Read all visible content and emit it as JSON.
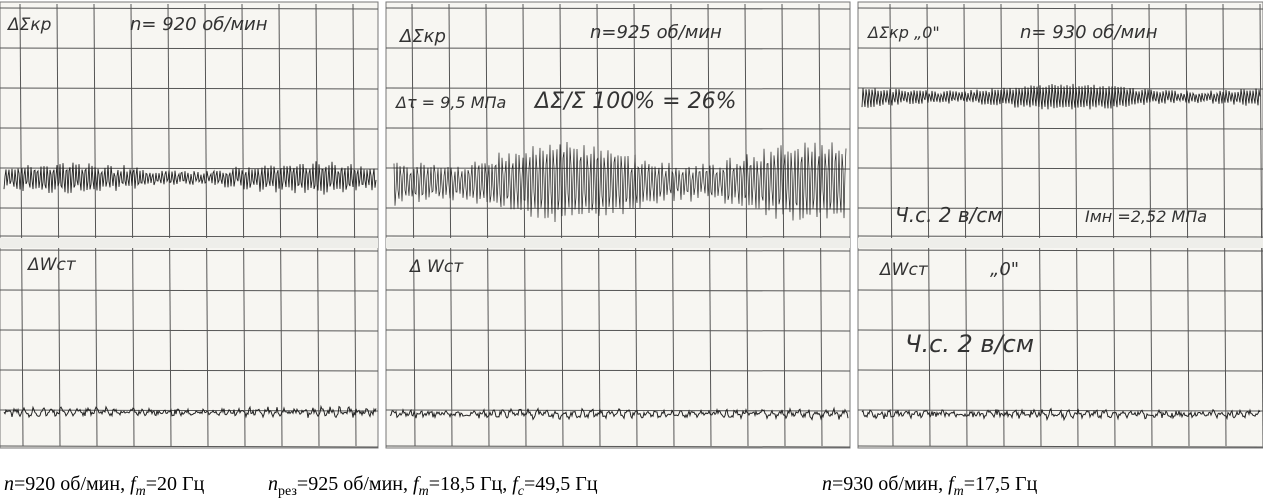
{
  "panels": [
    {
      "top_label": "ΔΣкр",
      "speed": "n= 920 об/мин",
      "bottom_label": "ΔWст"
    },
    {
      "top_label": "ΔΣкр",
      "speed": "n=925 об/мин",
      "stress": "Δτ = 9,5 МПа",
      "ratio": "ΔΣ/Σ 100% = 26%",
      "bottom_label": "Δ Wст"
    },
    {
      "top_label": "ΔΣкр „0\"",
      "speed": "n= 930 об/мин",
      "sensitivity_top": "Ч.с. 2 в/см",
      "current": "Iмн =2,52 МПа",
      "bottom_label": "ΔWст",
      "bottom_mark": "„0\"",
      "sensitivity_bottom": "Ч.с. 2 в/см"
    }
  ],
  "caption": [
    [
      "n",
      "=920 об/мин, ",
      "f",
      "m",
      "=20 Гц"
    ],
    [
      "n",
      "рез",
      "=925 об/мин, ",
      "f",
      "m",
      "=18,5 Гц, ",
      "f",
      "c",
      "=49,5 Гц"
    ],
    [
      "n",
      "=930 об/мин, ",
      "f",
      "m",
      "=17,5 Гц"
    ]
  ]
}
